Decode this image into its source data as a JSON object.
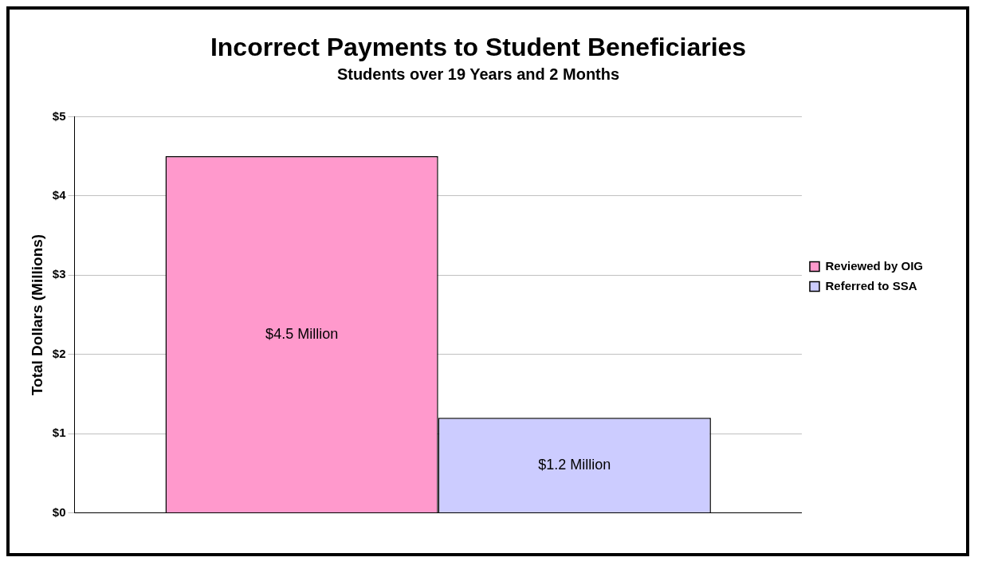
{
  "chart_data": {
    "type": "bar",
    "title": "Incorrect Payments to Student Beneficiaries",
    "subtitle": "Students over 19 Years and 2 Months",
    "ylabel": "Total Dollars (Millions)",
    "categories": [
      null
    ],
    "series": [
      {
        "name": "Reviewed by OIG",
        "color": "#ff99cc",
        "values": [
          4.5
        ],
        "value_labels": [
          "$4.5 Million"
        ]
      },
      {
        "name": "Referred to SSA",
        "color": "#ccccff",
        "values": [
          1.2
        ],
        "value_labels": [
          "$1.2 Million"
        ]
      }
    ],
    "ylim": [
      0,
      5
    ],
    "yticks": [
      {
        "value": 0,
        "label": "$0"
      },
      {
        "value": 1,
        "label": "$1"
      },
      {
        "value": 2,
        "label": "$2"
      },
      {
        "value": 3,
        "label": "$3"
      },
      {
        "value": 4,
        "label": "$4"
      },
      {
        "value": 5,
        "label": "$5"
      }
    ],
    "grid": "y",
    "legend": "right"
  }
}
